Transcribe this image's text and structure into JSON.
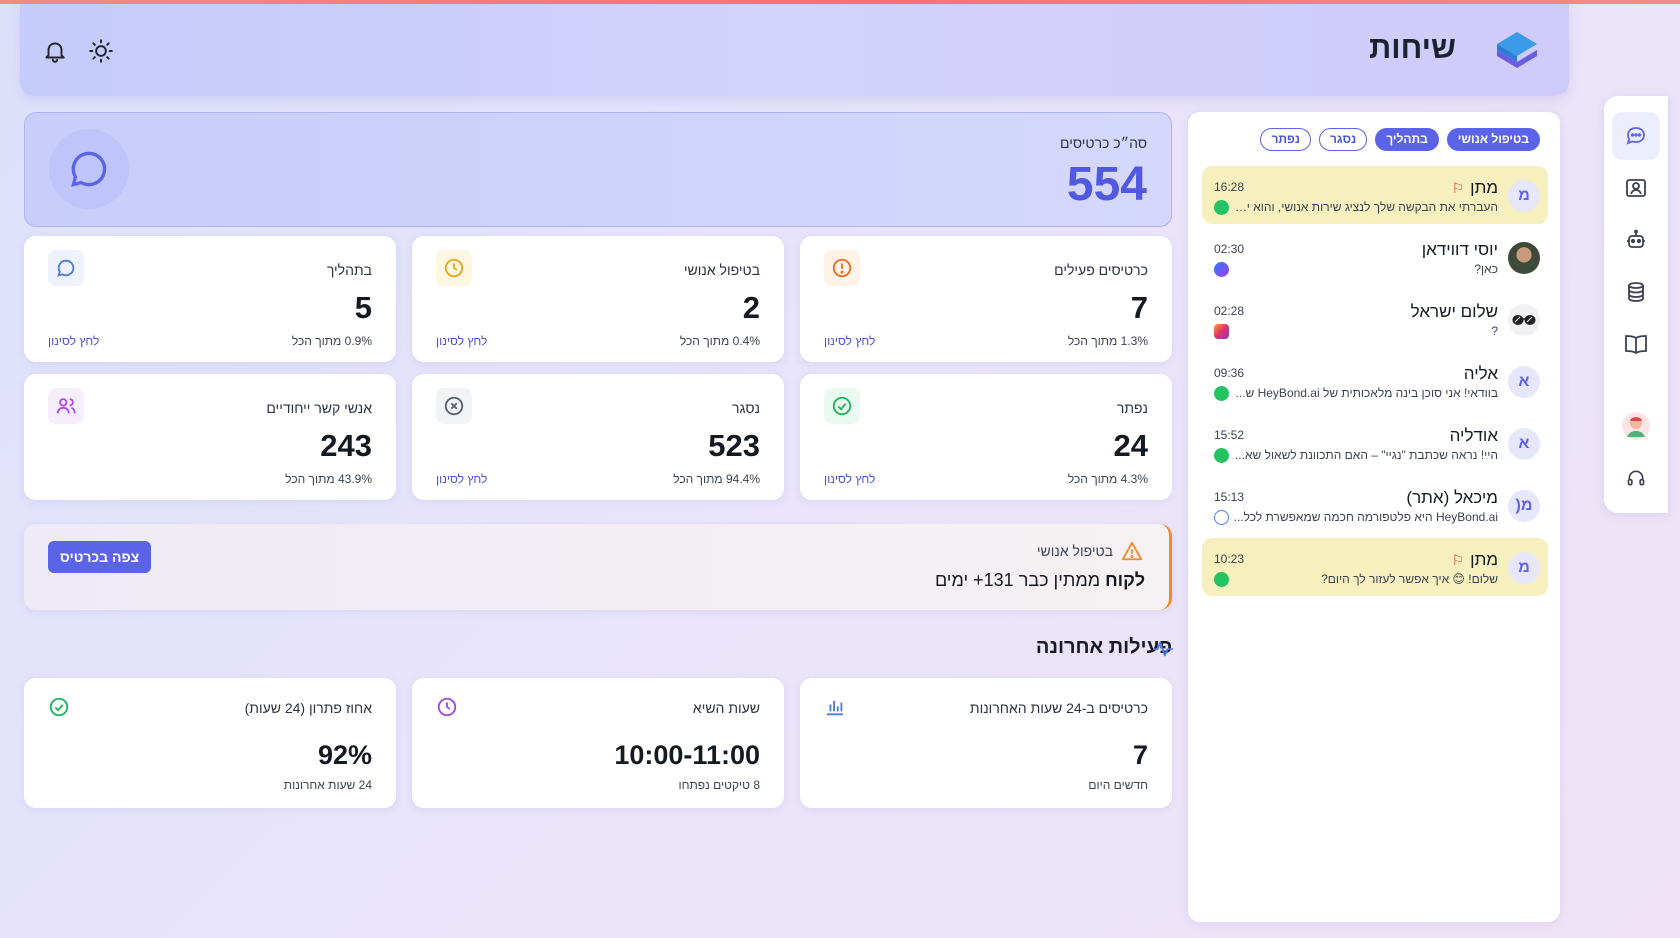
{
  "header": {
    "title": "שיחות"
  },
  "total": {
    "label": "סה״כ כרטיסים",
    "value": "554"
  },
  "cards": [
    {
      "title": "כרטיסים פעילים",
      "value": "7",
      "sub": "1.3% מתוך הכל",
      "link": "לחץ לסינון"
    },
    {
      "title": "בטיפול אנושי",
      "value": "2",
      "sub": "0.4% מתוך הכל",
      "link": "לחץ לסינון"
    },
    {
      "title": "בתהליך",
      "value": "5",
      "sub": "0.9% מתוך הכל",
      "link": "לחץ לסינון"
    },
    {
      "title": "נפתר",
      "value": "24",
      "sub": "4.3% מתוך הכל",
      "link": "לחץ לסינון"
    },
    {
      "title": "נסגר",
      "value": "523",
      "sub": "94.4% מתוך הכל",
      "link": "לחץ לסינון"
    },
    {
      "title": "אנשי קשר ייחודיים",
      "value": "243",
      "sub": "43.9% מתוך הכל"
    }
  ],
  "alert": {
    "label": "בטיפול אנושי",
    "text_bold": "לקוח",
    "text_rest": "ממתין כבר 131+ ימים",
    "button": "צפה בכרטיס"
  },
  "activity": {
    "title": "פעילות אחרונה",
    "stats": [
      {
        "title": "כרטיסים ב-24 שעות האחרונות",
        "value": "7",
        "sub": "חדשים היום"
      },
      {
        "title": "שעות השיא",
        "value": "10:00-11:00",
        "sub": "8 טיקטים נפתחו"
      },
      {
        "title": "אחוז פתרון (24 שעות)",
        "value": "92%",
        "sub": "24 שעות אחרונות"
      }
    ]
  },
  "filters": [
    "בטיפול אנושי",
    "בתהליך",
    "נסגר",
    "נפתר"
  ],
  "conversations": [
    {
      "initial": "מ",
      "name": "מתן",
      "flag": true,
      "time": "16:28",
      "message": "העברתי את הבקשה שלך לנציג שירות אנושי, והוא יחזור אליך בהקדם",
      "channel": "whatsapp",
      "highlight": true
    },
    {
      "initial": "",
      "name": "יוסי דווידאן",
      "flag": false,
      "time": "02:30",
      "message": "כאן?",
      "channel": "messenger",
      "highlight": false
    },
    {
      "initial": "",
      "name": "שלום ישראל",
      "flag": false,
      "time": "02:28",
      "message": "?",
      "channel": "instagram",
      "highlight": false
    },
    {
      "initial": "א",
      "name": "אליה",
      "flag": false,
      "time": "09:36",
      "message": "בוודאי! אני סוכן בינה מלאכותית של HeyBond.ai ש...",
      "channel": "whatsapp",
      "highlight": false
    },
    {
      "initial": "א",
      "name": "אודליה",
      "flag": false,
      "time": "15:52",
      "message": "היי! נראה שכתבת \"נגיי\" – האם התכוונת לשאול שא...",
      "channel": "whatsapp",
      "highlight": false
    },
    {
      "initial": "מ(",
      "name": "מיכאל (אתר)",
      "flag": false,
      "time": "15:13",
      "message": "HeyBond.ai היא פלטפורמה חכמה שמאפשרת לכל...",
      "channel": "web",
      "highlight": false
    },
    {
      "initial": "מ",
      "name": "מתן",
      "flag": true,
      "time": "10:23",
      "message": "שלום! 😊 איך אפשר לעזור לך היום?",
      "channel": "whatsapp",
      "highlight": true
    }
  ],
  "colors": {
    "accent": "#5b63e8",
    "warning": "#f48a2c",
    "highlight": "#f6efbe"
  }
}
